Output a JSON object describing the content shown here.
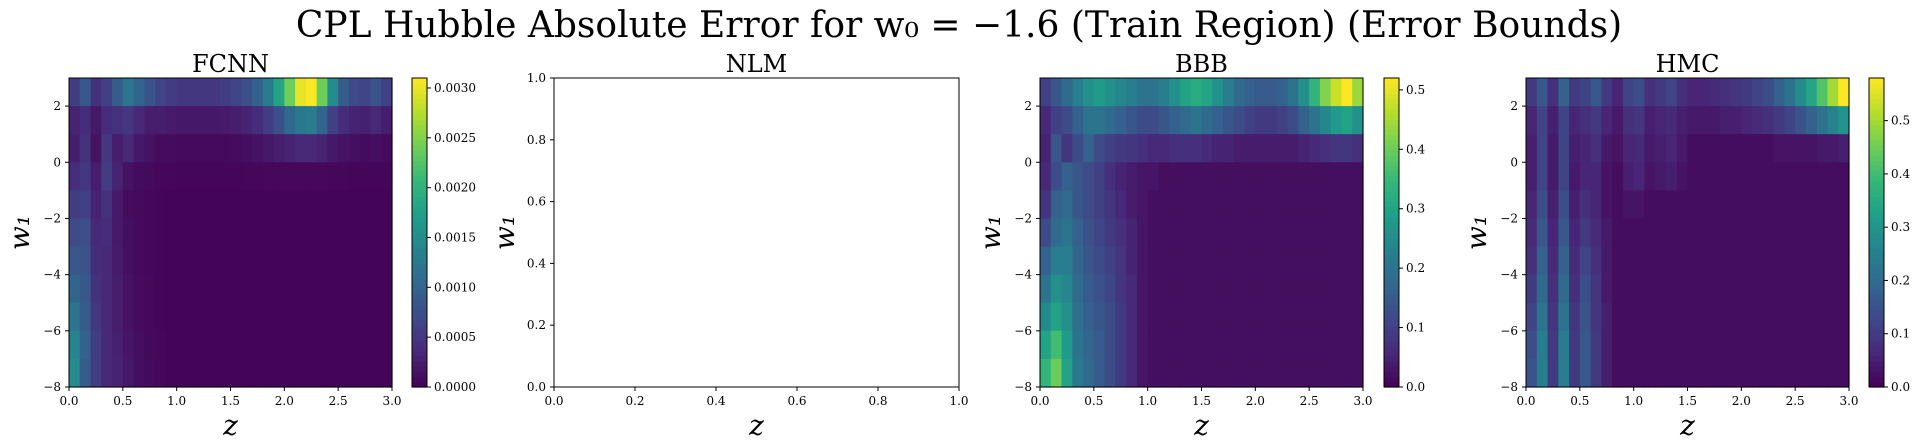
{
  "figure": {
    "suptitle": "CPL Hubble Absolute Error for w₀ = −1.6 (Train Region) (Error Bounds)"
  },
  "colormap": [
    "#440154",
    "#482878",
    "#3e4989",
    "#31688e",
    "#26828e",
    "#1f9e89",
    "#35b779",
    "#6ece58",
    "#b5de2b",
    "#fde725"
  ],
  "chart_data": [
    {
      "type": "heatmap",
      "title": "FCNN",
      "xlabel": "z",
      "ylabel": "w₁",
      "xlim": [
        0,
        3
      ],
      "ylim": [
        -8,
        3
      ],
      "xticks": [
        "0.0",
        "0.5",
        "1.0",
        "1.5",
        "2.0",
        "2.5",
        "3.0"
      ],
      "yticks": [
        "−8",
        "−6",
        "−4",
        "−2",
        "0",
        "2"
      ],
      "colorbar": {
        "vmin": 0,
        "vmax": 0.0031,
        "ticks": [
          "0.0000",
          "0.0005",
          "0.0010",
          "0.0015",
          "0.0020",
          "0.0025",
          "0.0030"
        ]
      },
      "grid_values": [
        [
          0.00055,
          0.00085,
          0.00045,
          0.0006,
          0.0009,
          0.0012,
          0.001,
          0.0008,
          0.00065,
          0.00055,
          0.0005,
          0.0005,
          0.0005,
          0.0005,
          0.00055,
          0.00065,
          0.00075,
          0.00095,
          0.0013,
          0.0018,
          0.0024,
          0.003,
          0.0031,
          0.0024,
          0.0015,
          0.0009,
          0.0007,
          0.00065,
          0.0008,
          0.0006
        ],
        [
          0.0003,
          0.0004,
          0.0002,
          0.0004,
          0.00045,
          0.0005,
          0.00035,
          0.00025,
          0.00025,
          0.00022,
          0.0002,
          0.0002,
          0.0002,
          0.0002,
          0.00022,
          0.00025,
          0.0003,
          0.0004,
          0.00055,
          0.00075,
          0.00105,
          0.00125,
          0.0013,
          0.001,
          0.0006,
          0.0004,
          0.0003,
          0.00028,
          0.00035,
          0.00025
        ],
        [
          0.00025,
          0.00045,
          0.00015,
          0.0005,
          0.00025,
          0.00035,
          0.0002,
          0.00015,
          0.0001,
          0.0001,
          8e-05,
          8e-05,
          8e-05,
          8e-05,
          8e-05,
          0.0001,
          0.00012,
          0.00015,
          0.0002,
          0.00025,
          0.0003,
          0.00035,
          0.00035,
          0.0003,
          0.0002,
          0.00015,
          0.00012,
          0.0001,
          0.00012,
          0.0001
        ],
        [
          0.0004,
          0.0005,
          0.00025,
          0.00055,
          0.0003,
          0.00015,
          0.0001,
          8e-05,
          5e-05,
          5e-05,
          4e-05,
          4e-05,
          4e-05,
          4e-05,
          4e-05,
          4e-05,
          5e-05,
          5e-05,
          6e-05,
          6e-05,
          6e-05,
          6e-05,
          6e-05,
          6e-05,
          5e-05,
          5e-05,
          4e-05,
          4e-05,
          4e-05,
          4e-05
        ],
        [
          0.00055,
          0.0006,
          0.0003,
          0.00045,
          0.0002,
          0.0001,
          8e-05,
          5e-05,
          4e-05,
          3e-05,
          3e-05,
          3e-05,
          3e-05,
          3e-05,
          3e-05,
          3e-05,
          3e-05,
          3e-05,
          3e-05,
          3e-05,
          3e-05,
          3e-05,
          3e-05,
          3e-05,
          3e-05,
          3e-05,
          3e-05,
          3e-05,
          3e-05,
          3e-05
        ],
        [
          0.0007,
          0.00075,
          0.00035,
          0.0004,
          0.0002,
          0.00012,
          8e-05,
          5e-05,
          4e-05,
          3e-05,
          3e-05,
          3e-05,
          3e-05,
          3e-05,
          3e-05,
          3e-05,
          3e-05,
          3e-05,
          3e-05,
          3e-05,
          3e-05,
          3e-05,
          3e-05,
          3e-05,
          3e-05,
          3e-05,
          3e-05,
          3e-05,
          3e-05,
          3e-05
        ],
        [
          0.00085,
          0.0008,
          0.0004,
          0.00035,
          0.00022,
          0.00012,
          8e-05,
          5e-05,
          4e-05,
          3e-05,
          3e-05,
          3e-05,
          3e-05,
          3e-05,
          3e-05,
          3e-05,
          3e-05,
          3e-05,
          3e-05,
          3e-05,
          3e-05,
          3e-05,
          3e-05,
          3e-05,
          3e-05,
          3e-05,
          3e-05,
          3e-05,
          3e-05,
          3e-05
        ],
        [
          0.001,
          0.00085,
          0.00045,
          0.00035,
          0.00025,
          0.00015,
          0.0001,
          6e-05,
          4e-05,
          3e-05,
          3e-05,
          3e-05,
          3e-05,
          3e-05,
          3e-05,
          3e-05,
          3e-05,
          3e-05,
          3e-05,
          3e-05,
          3e-05,
          3e-05,
          3e-05,
          3e-05,
          3e-05,
          3e-05,
          3e-05,
          3e-05,
          3e-05,
          3e-05
        ],
        [
          0.0012,
          0.0009,
          0.0005,
          0.00035,
          0.00025,
          0.00015,
          0.0001,
          6e-05,
          4e-05,
          3e-05,
          3e-05,
          3e-05,
          3e-05,
          3e-05,
          3e-05,
          3e-05,
          3e-05,
          3e-05,
          3e-05,
          3e-05,
          3e-05,
          3e-05,
          3e-05,
          3e-05,
          3e-05,
          3e-05,
          3e-05,
          3e-05,
          3e-05,
          3e-05
        ],
        [
          0.0014,
          0.00095,
          0.00055,
          0.00035,
          0.00028,
          0.00018,
          0.00012,
          7e-05,
          5e-05,
          3e-05,
          3e-05,
          3e-05,
          3e-05,
          3e-05,
          3e-05,
          3e-05,
          3e-05,
          3e-05,
          3e-05,
          3e-05,
          3e-05,
          3e-05,
          3e-05,
          3e-05,
          3e-05,
          3e-05,
          3e-05,
          3e-05,
          3e-05,
          3e-05
        ],
        [
          0.0015,
          0.0009,
          0.00055,
          0.00035,
          0.0003,
          0.0002,
          0.00012,
          8e-05,
          5e-05,
          3e-05,
          3e-05,
          3e-05,
          3e-05,
          3e-05,
          3e-05,
          3e-05,
          3e-05,
          3e-05,
          3e-05,
          3e-05,
          3e-05,
          3e-05,
          3e-05,
          3e-05,
          3e-05,
          3e-05,
          3e-05,
          3e-05,
          3e-05,
          3e-05
        ]
      ]
    },
    {
      "type": "heatmap",
      "title": "NLM",
      "xlabel": "z",
      "ylabel": "w₁",
      "xlim": [
        0,
        1
      ],
      "ylim": [
        0,
        1
      ],
      "xticks": [
        "0.0",
        "0.2",
        "0.4",
        "0.6",
        "0.8",
        "1.0"
      ],
      "yticks": [
        "0.0",
        "0.2",
        "0.4",
        "0.6",
        "0.8",
        "1.0"
      ],
      "colorbar": null,
      "grid_values": []
    },
    {
      "type": "heatmap",
      "title": "BBB",
      "xlabel": "z",
      "ylabel": "w₁",
      "xlim": [
        0,
        3
      ],
      "ylim": [
        -8,
        3
      ],
      "xticks": [
        "0.0",
        "0.5",
        "1.0",
        "1.5",
        "2.0",
        "2.5",
        "3.0"
      ],
      "yticks": [
        "−8",
        "−6",
        "−4",
        "−2",
        "0",
        "2"
      ],
      "colorbar": {
        "vmin": 0,
        "vmax": 0.52,
        "ticks": [
          "0.0",
          "0.1",
          "0.2",
          "0.3",
          "0.4",
          "0.5"
        ]
      },
      "grid_values": [
        [
          0.1,
          0.14,
          0.18,
          0.22,
          0.26,
          0.28,
          0.26,
          0.24,
          0.22,
          0.2,
          0.2,
          0.22,
          0.26,
          0.3,
          0.32,
          0.3,
          0.26,
          0.22,
          0.18,
          0.16,
          0.15,
          0.15,
          0.16,
          0.2,
          0.26,
          0.34,
          0.42,
          0.48,
          0.52,
          0.44
        ],
        [
          0.06,
          0.1,
          0.12,
          0.16,
          0.2,
          0.2,
          0.18,
          0.16,
          0.14,
          0.12,
          0.12,
          0.14,
          0.16,
          0.18,
          0.2,
          0.18,
          0.16,
          0.14,
          0.12,
          0.1,
          0.09,
          0.09,
          0.1,
          0.12,
          0.16,
          0.2,
          0.24,
          0.28,
          0.3,
          0.26
        ],
        [
          0.05,
          0.14,
          0.08,
          0.12,
          0.16,
          0.12,
          0.1,
          0.09,
          0.08,
          0.07,
          0.06,
          0.06,
          0.07,
          0.07,
          0.07,
          0.06,
          0.05,
          0.05,
          0.04,
          0.04,
          0.04,
          0.04,
          0.04,
          0.04,
          0.05,
          0.06,
          0.07,
          0.08,
          0.08,
          0.07
        ],
        [
          0.06,
          0.12,
          0.16,
          0.14,
          0.12,
          0.1,
          0.07,
          0.05,
          0.04,
          0.03,
          0.03,
          0.02,
          0.02,
          0.02,
          0.02,
          0.02,
          0.02,
          0.02,
          0.02,
          0.02,
          0.02,
          0.02,
          0.02,
          0.02,
          0.02,
          0.02,
          0.02,
          0.02,
          0.02,
          0.02
        ],
        [
          0.08,
          0.16,
          0.18,
          0.14,
          0.12,
          0.1,
          0.08,
          0.06,
          0.04,
          0.03,
          0.02,
          0.02,
          0.02,
          0.02,
          0.02,
          0.02,
          0.02,
          0.02,
          0.02,
          0.02,
          0.02,
          0.02,
          0.02,
          0.02,
          0.02,
          0.02,
          0.02,
          0.02,
          0.02,
          0.02
        ],
        [
          0.12,
          0.18,
          0.2,
          0.16,
          0.13,
          0.11,
          0.09,
          0.07,
          0.05,
          0.03,
          0.02,
          0.02,
          0.02,
          0.02,
          0.02,
          0.02,
          0.02,
          0.02,
          0.02,
          0.02,
          0.02,
          0.02,
          0.02,
          0.02,
          0.02,
          0.02,
          0.02,
          0.02,
          0.02,
          0.02
        ],
        [
          0.16,
          0.22,
          0.22,
          0.17,
          0.14,
          0.12,
          0.1,
          0.08,
          0.05,
          0.03,
          0.02,
          0.02,
          0.02,
          0.02,
          0.02,
          0.02,
          0.02,
          0.02,
          0.02,
          0.02,
          0.02,
          0.02,
          0.02,
          0.02,
          0.02,
          0.02,
          0.02,
          0.02,
          0.02,
          0.02
        ],
        [
          0.2,
          0.26,
          0.24,
          0.18,
          0.15,
          0.13,
          0.11,
          0.08,
          0.06,
          0.03,
          0.02,
          0.02,
          0.02,
          0.02,
          0.02,
          0.02,
          0.02,
          0.02,
          0.02,
          0.02,
          0.02,
          0.02,
          0.02,
          0.02,
          0.02,
          0.02,
          0.02,
          0.02,
          0.02,
          0.02
        ],
        [
          0.25,
          0.3,
          0.26,
          0.19,
          0.16,
          0.14,
          0.12,
          0.09,
          0.06,
          0.03,
          0.02,
          0.02,
          0.02,
          0.02,
          0.02,
          0.02,
          0.02,
          0.02,
          0.02,
          0.02,
          0.02,
          0.02,
          0.02,
          0.02,
          0.02,
          0.02,
          0.02,
          0.02,
          0.02,
          0.02
        ],
        [
          0.3,
          0.36,
          0.28,
          0.2,
          0.17,
          0.15,
          0.12,
          0.09,
          0.06,
          0.03,
          0.02,
          0.02,
          0.02,
          0.02,
          0.02,
          0.02,
          0.02,
          0.02,
          0.02,
          0.02,
          0.02,
          0.02,
          0.02,
          0.02,
          0.02,
          0.02,
          0.02,
          0.02,
          0.02,
          0.02
        ],
        [
          0.34,
          0.4,
          0.3,
          0.21,
          0.18,
          0.15,
          0.12,
          0.09,
          0.06,
          0.03,
          0.02,
          0.02,
          0.02,
          0.02,
          0.02,
          0.02,
          0.02,
          0.02,
          0.02,
          0.02,
          0.02,
          0.02,
          0.02,
          0.02,
          0.02,
          0.02,
          0.02,
          0.02,
          0.02,
          0.02
        ]
      ]
    },
    {
      "type": "heatmap",
      "title": "HMC",
      "xlabel": "z",
      "ylabel": "w₁",
      "xlim": [
        0,
        3
      ],
      "ylim": [
        -8,
        3
      ],
      "xticks": [
        "0.0",
        "0.5",
        "1.0",
        "1.5",
        "2.0",
        "2.5",
        "3.0"
      ],
      "yticks": [
        "−8",
        "−6",
        "−4",
        "−2",
        "0",
        "2"
      ],
      "colorbar": {
        "vmin": 0,
        "vmax": 0.58,
        "ticks": [
          "0.0",
          "0.1",
          "0.2",
          "0.3",
          "0.4",
          "0.5"
        ]
      },
      "grid_values": [
        [
          0.1,
          0.16,
          0.08,
          0.18,
          0.1,
          0.12,
          0.16,
          0.1,
          0.06,
          0.12,
          0.14,
          0.08,
          0.1,
          0.12,
          0.08,
          0.06,
          0.06,
          0.07,
          0.08,
          0.09,
          0.1,
          0.12,
          0.14,
          0.18,
          0.22,
          0.28,
          0.34,
          0.42,
          0.5,
          0.58
        ],
        [
          0.06,
          0.12,
          0.05,
          0.12,
          0.06,
          0.08,
          0.1,
          0.06,
          0.04,
          0.08,
          0.09,
          0.05,
          0.06,
          0.07,
          0.05,
          0.04,
          0.04,
          0.04,
          0.05,
          0.05,
          0.06,
          0.07,
          0.08,
          0.1,
          0.12,
          0.15,
          0.18,
          0.22,
          0.26,
          0.3
        ],
        [
          0.05,
          0.12,
          0.04,
          0.12,
          0.05,
          0.06,
          0.08,
          0.04,
          0.03,
          0.06,
          0.07,
          0.04,
          0.05,
          0.06,
          0.04,
          0.02,
          0.02,
          0.02,
          0.02,
          0.02,
          0.02,
          0.02,
          0.02,
          0.03,
          0.03,
          0.03,
          0.03,
          0.04,
          0.04,
          0.05
        ],
        [
          0.05,
          0.12,
          0.04,
          0.12,
          0.04,
          0.06,
          0.06,
          0.03,
          0.02,
          0.05,
          0.06,
          0.03,
          0.04,
          0.05,
          0.03,
          0.02,
          0.02,
          0.02,
          0.02,
          0.02,
          0.02,
          0.02,
          0.02,
          0.02,
          0.02,
          0.02,
          0.02,
          0.02,
          0.02,
          0.02
        ],
        [
          0.06,
          0.14,
          0.05,
          0.14,
          0.05,
          0.08,
          0.06,
          0.03,
          0.02,
          0.03,
          0.03,
          0.02,
          0.02,
          0.02,
          0.02,
          0.02,
          0.02,
          0.02,
          0.02,
          0.02,
          0.02,
          0.02,
          0.02,
          0.02,
          0.02,
          0.02,
          0.02,
          0.02,
          0.02,
          0.02
        ],
        [
          0.07,
          0.16,
          0.06,
          0.16,
          0.06,
          0.1,
          0.07,
          0.04,
          0.02,
          0.02,
          0.02,
          0.02,
          0.02,
          0.02,
          0.02,
          0.02,
          0.02,
          0.02,
          0.02,
          0.02,
          0.02,
          0.02,
          0.02,
          0.02,
          0.02,
          0.02,
          0.02,
          0.02,
          0.02,
          0.02
        ],
        [
          0.08,
          0.18,
          0.07,
          0.18,
          0.07,
          0.12,
          0.08,
          0.04,
          0.02,
          0.02,
          0.02,
          0.02,
          0.02,
          0.02,
          0.02,
          0.02,
          0.02,
          0.02,
          0.02,
          0.02,
          0.02,
          0.02,
          0.02,
          0.02,
          0.02,
          0.02,
          0.02,
          0.02,
          0.02,
          0.02
        ],
        [
          0.1,
          0.2,
          0.08,
          0.2,
          0.08,
          0.14,
          0.09,
          0.04,
          0.02,
          0.02,
          0.02,
          0.02,
          0.02,
          0.02,
          0.02,
          0.02,
          0.02,
          0.02,
          0.02,
          0.02,
          0.02,
          0.02,
          0.02,
          0.02,
          0.02,
          0.02,
          0.02,
          0.02,
          0.02,
          0.02
        ],
        [
          0.12,
          0.22,
          0.09,
          0.22,
          0.09,
          0.15,
          0.09,
          0.05,
          0.02,
          0.02,
          0.02,
          0.02,
          0.02,
          0.02,
          0.02,
          0.02,
          0.02,
          0.02,
          0.02,
          0.02,
          0.02,
          0.02,
          0.02,
          0.02,
          0.02,
          0.02,
          0.02,
          0.02,
          0.02,
          0.02
        ],
        [
          0.14,
          0.24,
          0.1,
          0.24,
          0.1,
          0.16,
          0.1,
          0.05,
          0.02,
          0.02,
          0.02,
          0.02,
          0.02,
          0.02,
          0.02,
          0.02,
          0.02,
          0.02,
          0.02,
          0.02,
          0.02,
          0.02,
          0.02,
          0.02,
          0.02,
          0.02,
          0.02,
          0.02,
          0.02,
          0.02
        ],
        [
          0.15,
          0.25,
          0.1,
          0.25,
          0.1,
          0.16,
          0.1,
          0.05,
          0.02,
          0.02,
          0.02,
          0.02,
          0.02,
          0.02,
          0.02,
          0.02,
          0.02,
          0.02,
          0.02,
          0.02,
          0.02,
          0.02,
          0.02,
          0.02,
          0.02,
          0.02,
          0.02,
          0.02,
          0.02,
          0.02
        ]
      ]
    }
  ]
}
